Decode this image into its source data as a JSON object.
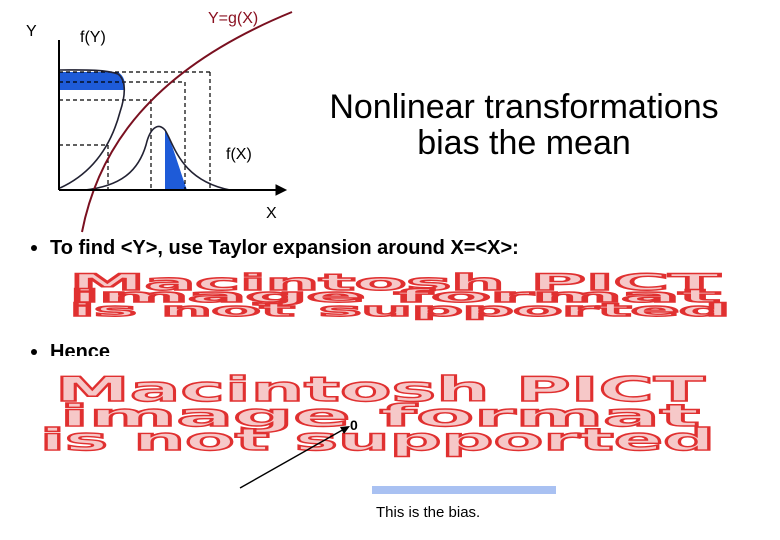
{
  "diagram": {
    "labels": {
      "y_axis": "Y",
      "f_y": "f(Y)",
      "g": "Y=g(X)",
      "f_x": "f(X)",
      "x_axis": "X"
    }
  },
  "title": [
    "Nonlinear transformations",
    "bias the mean"
  ],
  "bullets": [
    "To find <Y>, use Taylor expansion around X=<X>:",
    "Hence"
  ],
  "placeholders": [
    [
      "Macintosh PICT",
      "image format",
      "is not supported"
    ],
    [
      "Macintosh PICT",
      "image format",
      "is not supported"
    ]
  ],
  "annotations": {
    "zero": "0",
    "bias": "This is the bias."
  }
}
